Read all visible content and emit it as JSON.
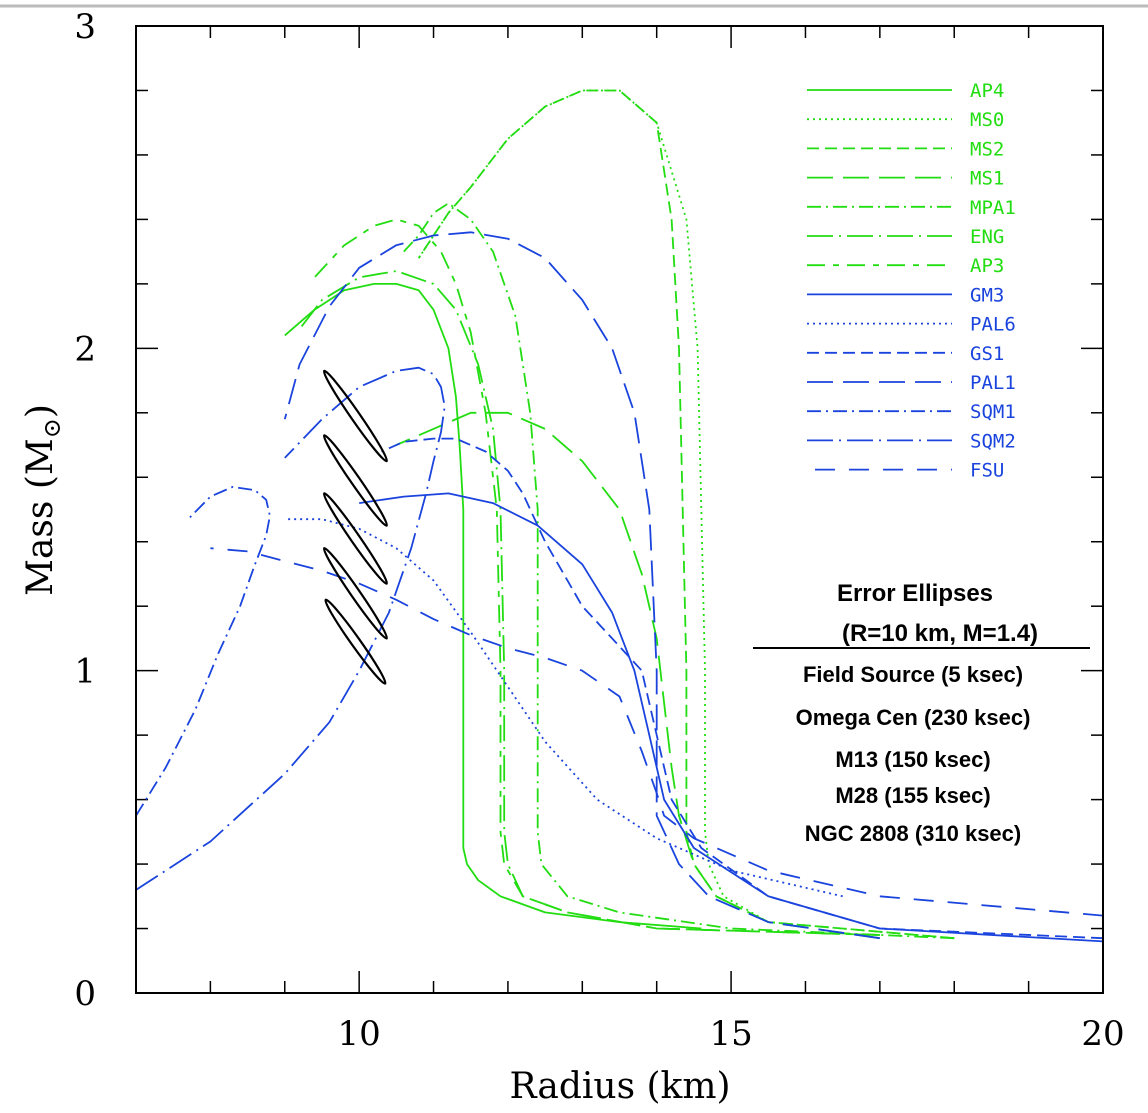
{
  "chart_data": {
    "type": "line",
    "title": "",
    "xlabel": "Radius (km)",
    "ylabel": "Mass (M",
    "ylabel_symbol": "⊙",
    "ylabel_close": ")",
    "xlim": [
      7,
      20
    ],
    "ylim": [
      0,
      3
    ],
    "x_tick_labels": [
      "10",
      "15",
      "20"
    ],
    "y_tick_labels": [
      "0",
      "1",
      "2",
      "3"
    ],
    "legend_position": "top-right",
    "colors": {
      "green": "#22dd11",
      "blue": "#1a44dd",
      "ellipse": "#000000"
    },
    "series": [
      {
        "name": "AP4",
        "color": "green",
        "dash": "solid",
        "x": [
          14.6,
          13.5,
          12.5,
          11.9,
          11.6,
          11.45,
          11.4,
          11.4,
          11.4,
          11.4,
          11.35,
          11.3,
          11.2,
          11.0,
          10.8,
          10.5,
          10.2,
          9.8,
          9.4,
          9.0
        ],
        "y": [
          0.2,
          0.22,
          0.25,
          0.3,
          0.35,
          0.4,
          0.45,
          0.5,
          1.0,
          1.5,
          1.7,
          1.85,
          2.0,
          2.12,
          2.18,
          2.2,
          2.2,
          2.18,
          2.12,
          2.04
        ]
      },
      {
        "name": "MS0",
        "color": "green",
        "dash": "dotted",
        "x": [
          18.0,
          15.5,
          14.9,
          14.7,
          14.65,
          14.65,
          14.6,
          14.55,
          14.4,
          14.0,
          13.5,
          13.0,
          12.5,
          12.0,
          11.5,
          11.2,
          10.8
        ],
        "y": [
          0.17,
          0.22,
          0.3,
          0.4,
          0.5,
          1.0,
          1.5,
          2.0,
          2.4,
          2.7,
          2.8,
          2.8,
          2.75,
          2.65,
          2.5,
          2.42,
          2.28
        ]
      },
      {
        "name": "MS2",
        "color": "green",
        "dash": "dashed",
        "x": [
          18.0,
          15.5,
          14.8,
          14.5,
          14.4,
          14.4,
          14.35,
          14.3,
          14.2,
          14.0,
          13.5,
          13.0,
          12.5,
          12.0,
          11.5,
          11.2,
          10.8
        ],
        "y": [
          0.17,
          0.22,
          0.3,
          0.4,
          0.5,
          1.0,
          1.5,
          2.0,
          2.4,
          2.7,
          2.8,
          2.8,
          2.75,
          2.65,
          2.5,
          2.42,
          2.28
        ]
      },
      {
        "name": "MS1",
        "color": "green",
        "dash": "longdash",
        "x": [
          17.0,
          15.5,
          14.8,
          14.5,
          14.3,
          14.2,
          14.1,
          14.0,
          13.8,
          13.5,
          13.0,
          12.5,
          12.0,
          11.5,
          11.0,
          10.5
        ],
        "y": [
          0.17,
          0.22,
          0.3,
          0.4,
          0.55,
          0.7,
          0.9,
          1.1,
          1.3,
          1.5,
          1.65,
          1.75,
          1.8,
          1.8,
          1.75,
          1.7
        ]
      },
      {
        "name": "MPA1",
        "color": "green",
        "dash": "dashdot",
        "x": [
          18.0,
          15.0,
          13.5,
          12.8,
          12.45,
          12.4,
          12.4,
          12.4,
          12.3,
          12.1,
          11.8,
          11.5,
          11.2,
          11.0,
          10.8,
          10.6
        ],
        "y": [
          0.17,
          0.2,
          0.25,
          0.3,
          0.4,
          0.5,
          1.0,
          1.5,
          1.8,
          2.1,
          2.3,
          2.4,
          2.45,
          2.42,
          2.35,
          2.3
        ]
      },
      {
        "name": "ENG",
        "color": "green",
        "dash": "dashdotlong",
        "x": [
          17.0,
          14.0,
          12.8,
          12.2,
          12.0,
          11.95,
          11.95,
          11.9,
          11.8,
          11.6,
          11.3,
          11.0,
          10.5,
          10.0,
          9.5,
          9.2
        ],
        "y": [
          0.18,
          0.2,
          0.25,
          0.3,
          0.4,
          0.5,
          1.0,
          1.5,
          1.75,
          1.95,
          2.12,
          2.2,
          2.24,
          2.22,
          2.15,
          2.06
        ]
      },
      {
        "name": "AP3",
        "color": "green",
        "dash": "dashshort",
        "x": [
          17.0,
          14.0,
          12.8,
          12.2,
          11.95,
          11.9,
          11.9,
          11.85,
          11.7,
          11.5,
          11.3,
          11.1,
          10.8,
          10.5,
          10.2,
          9.8,
          9.4
        ],
        "y": [
          0.18,
          0.2,
          0.25,
          0.3,
          0.4,
          0.5,
          1.0,
          1.5,
          1.8,
          2.05,
          2.2,
          2.3,
          2.38,
          2.4,
          2.38,
          2.32,
          2.22
        ]
      },
      {
        "name": "GM3",
        "color": "blue",
        "dash": "solid",
        "x": [
          20.0,
          17.0,
          15.5,
          14.5,
          14.1,
          13.9,
          13.7,
          13.4,
          13.0,
          12.4,
          11.8,
          11.2,
          10.6,
          10.0
        ],
        "y": [
          0.16,
          0.2,
          0.3,
          0.45,
          0.6,
          0.8,
          1.0,
          1.18,
          1.33,
          1.45,
          1.52,
          1.55,
          1.54,
          1.52
        ]
      },
      {
        "name": "PAL6",
        "color": "blue",
        "dash": "dotted",
        "x": [
          16.5,
          15.0,
          14.0,
          13.2,
          12.5,
          12.0,
          11.5,
          11.0,
          10.5,
          10.0,
          9.5,
          9.0
        ],
        "y": [
          0.3,
          0.38,
          0.48,
          0.6,
          0.78,
          0.95,
          1.12,
          1.28,
          1.38,
          1.44,
          1.47,
          1.47
        ]
      },
      {
        "name": "GS1",
        "color": "blue",
        "dash": "dashed",
        "x": [
          20.0,
          17.0,
          15.5,
          14.6,
          14.2,
          14.0,
          13.8,
          13.4,
          13.0,
          12.5,
          12.2,
          12.0,
          11.7,
          11.3,
          11.0,
          10.6,
          10.3
        ],
        "y": [
          0.17,
          0.2,
          0.3,
          0.45,
          0.6,
          0.8,
          1.0,
          1.1,
          1.2,
          1.4,
          1.55,
          1.62,
          1.68,
          1.72,
          1.72,
          1.71,
          1.68
        ]
      },
      {
        "name": "PAL1",
        "color": "blue",
        "dash": "longdash",
        "x": [
          17.0,
          15.5,
          14.7,
          14.3,
          14.0,
          14.0,
          13.9,
          13.7,
          13.4,
          13.0,
          12.5,
          12.0,
          11.5,
          11.0,
          10.5,
          10.0,
          9.6,
          9.2,
          9.0
        ],
        "y": [
          0.17,
          0.22,
          0.3,
          0.4,
          0.55,
          1.0,
          1.5,
          1.8,
          2.0,
          2.15,
          2.28,
          2.34,
          2.36,
          2.35,
          2.32,
          2.25,
          2.13,
          1.95,
          1.78
        ]
      },
      {
        "name": "SQM1",
        "color": "blue",
        "dash": "dashdot",
        "x": [
          7.0,
          7.4,
          7.8,
          8.1,
          8.4,
          8.6,
          8.75,
          8.8,
          8.75,
          8.6,
          8.3,
          8.0,
          7.7
        ],
        "y": [
          0.55,
          0.7,
          0.88,
          1.05,
          1.2,
          1.33,
          1.42,
          1.48,
          1.53,
          1.56,
          1.57,
          1.54,
          1.47
        ]
      },
      {
        "name": "SQM2",
        "color": "blue",
        "dash": "dashdotlong",
        "x": [
          7.0,
          8.0,
          9.0,
          9.6,
          10.0,
          10.4,
          10.7,
          10.9,
          11.0,
          11.1,
          11.15,
          11.1,
          11.0,
          10.8,
          10.5,
          10.0,
          9.5,
          9.0
        ],
        "y": [
          0.32,
          0.47,
          0.68,
          0.84,
          1.0,
          1.18,
          1.38,
          1.55,
          1.65,
          1.74,
          1.82,
          1.88,
          1.92,
          1.94,
          1.93,
          1.88,
          1.78,
          1.66
        ]
      },
      {
        "name": "FSU",
        "color": "blue",
        "dash": "dashlong",
        "x": [
          20.0,
          17.0,
          15.5,
          14.5,
          14.1,
          14.0,
          13.8,
          13.5,
          13.0,
          12.5,
          12.0,
          11.5,
          11.0,
          10.5,
          10.0,
          9.5,
          9.0,
          8.5,
          8.0
        ],
        "y": [
          0.24,
          0.3,
          0.38,
          0.48,
          0.55,
          0.62,
          0.75,
          0.92,
          1.0,
          1.04,
          1.07,
          1.11,
          1.16,
          1.22,
          1.27,
          1.31,
          1.34,
          1.37,
          1.38
        ]
      }
    ],
    "error_ellipses": [
      {
        "label": "Field Source (5 ksec)",
        "cx": 9.95,
        "cy": 1.79,
        "rx_km": 0.42,
        "rm": 0.14,
        "tilt": 0.14
      },
      {
        "label": "Omega Cen (230 ksec)",
        "cx": 9.95,
        "cy": 1.59,
        "rx_km": 0.42,
        "rm": 0.14,
        "tilt": 0.14
      },
      {
        "label": "M13 (150 ksec)",
        "cx": 9.95,
        "cy": 1.41,
        "rx_km": 0.42,
        "rm": 0.14,
        "tilt": 0.14
      },
      {
        "label": "M28 (155 ksec)",
        "cx": 9.95,
        "cy": 1.24,
        "rx_km": 0.42,
        "rm": 0.14,
        "tilt": 0.14
      },
      {
        "label": "NGC 2808 (310 ksec)",
        "cx": 9.95,
        "cy": 1.09,
        "rx_km": 0.4,
        "rm": 0.13,
        "tilt": 0.13
      }
    ],
    "annotation": {
      "title": "Error Ellipses",
      "subtitle": "(R=10 km, M=1.4)",
      "lines": [
        "Field Source (5 ksec)",
        "Omega Cen (230 ksec)",
        "M13 (150 ksec)",
        "M28 (155 ksec)",
        "NGC 2808 (310 ksec)"
      ]
    }
  }
}
